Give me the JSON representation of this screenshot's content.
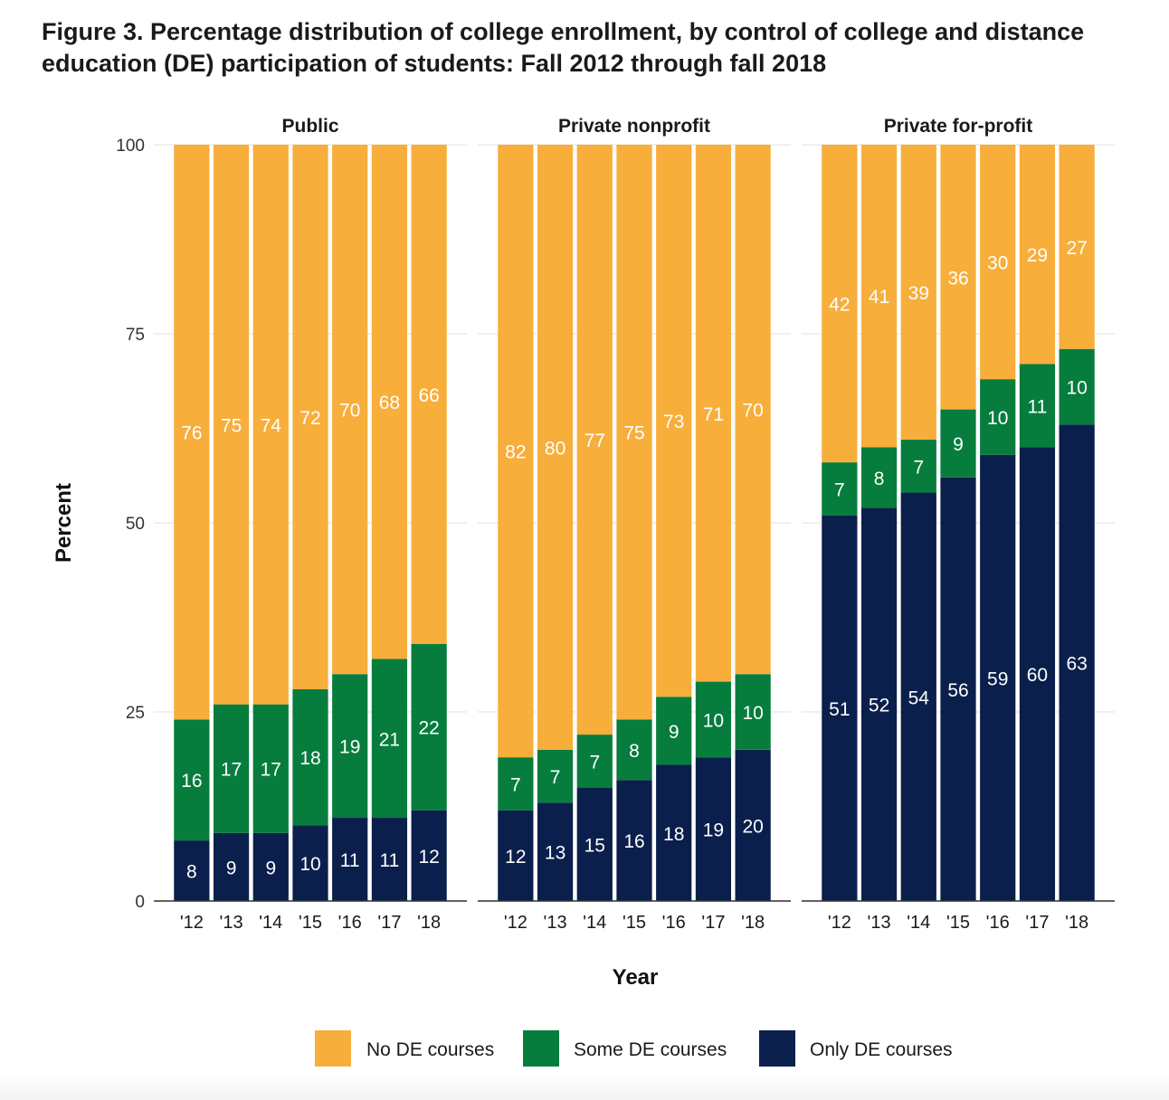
{
  "figure_title": "Figure 3. Percentage distribution of college enrollment, by control of college and distance education (DE) participation of students: Fall 2012 through fall 2018",
  "colors": {
    "no_de": "#F7AE3B",
    "some_de": "#067D3D",
    "only_de": "#0B1F4C",
    "grid": "#ebebeb"
  },
  "chart_data": {
    "type": "bar",
    "stacked": true,
    "title": "Figure 3. Percentage distribution of college enrollment, by control of college and distance education (DE) participation of students: Fall 2012 through fall 2018",
    "xlabel": "Year",
    "ylabel": "Percent",
    "ylim": [
      0,
      100
    ],
    "yticks": [
      0,
      25,
      50,
      75,
      100
    ],
    "grid": true,
    "legend_position": "bottom",
    "categories": [
      "'12",
      "'13",
      "'14",
      "'15",
      "'16",
      "'17",
      "'18"
    ],
    "legend": [
      {
        "key": "no_de",
        "label": "No DE courses"
      },
      {
        "key": "some_de",
        "label": "Some DE courses"
      },
      {
        "key": "only_de",
        "label": "Only DE courses"
      }
    ],
    "facets": [
      {
        "name": "Public",
        "series": {
          "only_de": [
            8,
            9,
            9,
            10,
            11,
            11,
            12
          ],
          "some_de": [
            16,
            17,
            17,
            18,
            19,
            21,
            22
          ],
          "no_de": [
            76,
            75,
            74,
            72,
            70,
            68,
            66
          ]
        }
      },
      {
        "name": "Private nonprofit",
        "series": {
          "only_de": [
            12,
            13,
            15,
            16,
            18,
            19,
            20
          ],
          "some_de": [
            7,
            7,
            7,
            8,
            9,
            10,
            10
          ],
          "no_de": [
            82,
            80,
            77,
            75,
            73,
            71,
            70
          ]
        }
      },
      {
        "name": "Private for-profit",
        "series": {
          "only_de": [
            51,
            52,
            54,
            56,
            59,
            60,
            63
          ],
          "some_de": [
            7,
            8,
            7,
            9,
            10,
            11,
            10
          ],
          "no_de": [
            42,
            41,
            39,
            36,
            30,
            29,
            27
          ]
        }
      }
    ]
  }
}
